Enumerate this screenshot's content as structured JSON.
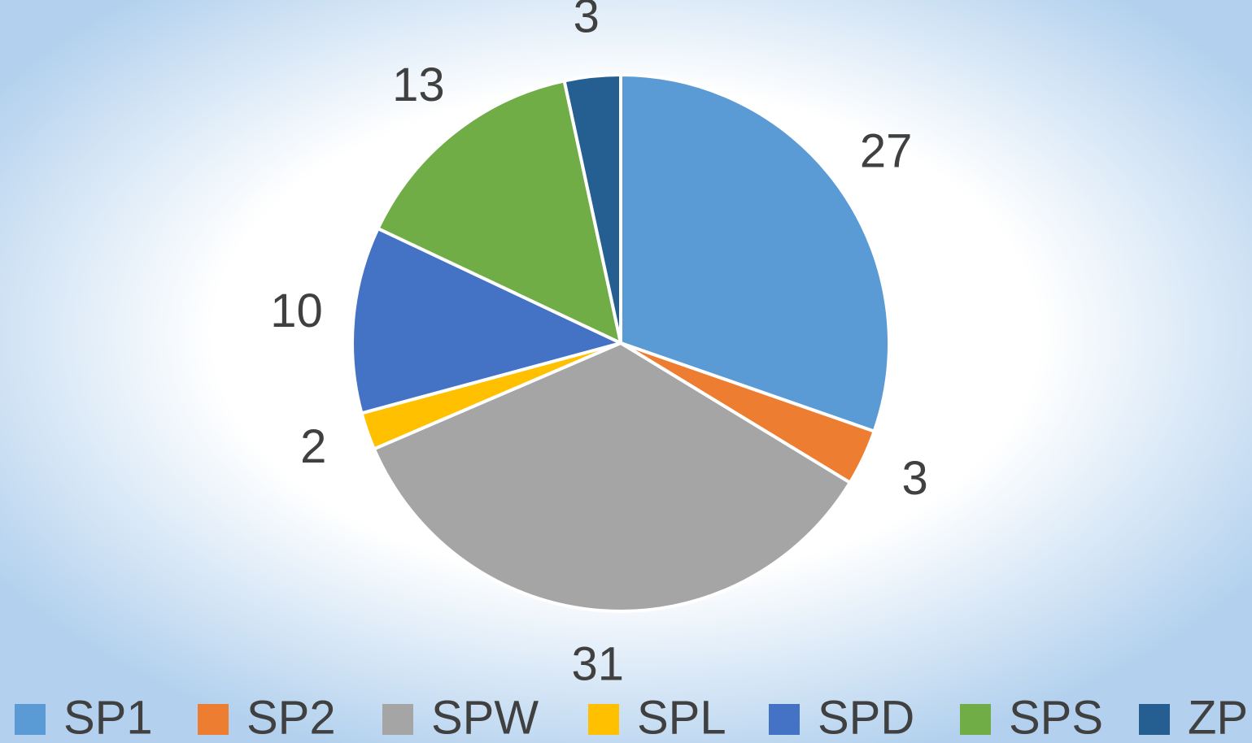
{
  "chart_data": {
    "type": "pie",
    "categories": [
      "SP1",
      "SP2",
      "SPW",
      "SPL",
      "SPD",
      "SPS",
      "ZP"
    ],
    "values": [
      27,
      3,
      31,
      2,
      10,
      13,
      3
    ],
    "colors": [
      "#5b9bd5",
      "#ed7d31",
      "#a5a5a5",
      "#ffc000",
      "#4472c4",
      "#70ad47",
      "#255e91"
    ],
    "legend": "bottom"
  }
}
